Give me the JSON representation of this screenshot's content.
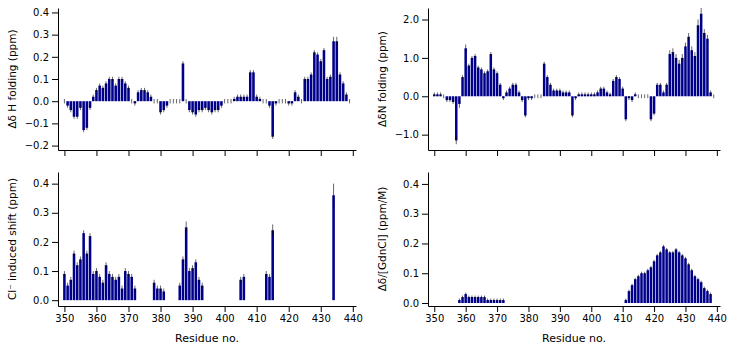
{
  "chart_data": [
    {
      "type": "bar",
      "ylabel": "Δδ H folding (ppm)",
      "color": "#00008B",
      "tick_labels": "y",
      "x": [
        350,
        351,
        352,
        353,
        354,
        355,
        356,
        357,
        358,
        359,
        360,
        361,
        362,
        363,
        364,
        365,
        366,
        367,
        368,
        369,
        370,
        371,
        372,
        373,
        374,
        375,
        376,
        377,
        378,
        379,
        380,
        381,
        382,
        383,
        384,
        385,
        386,
        387,
        388,
        389,
        390,
        391,
        392,
        393,
        394,
        395,
        396,
        397,
        398,
        399,
        400,
        401,
        402,
        403,
        404,
        405,
        406,
        407,
        408,
        409,
        410,
        411,
        412,
        413,
        414,
        415,
        416,
        417,
        418,
        419,
        420,
        421,
        422,
        423,
        424,
        425,
        426,
        427,
        428,
        429,
        430,
        431,
        432,
        433,
        434,
        435,
        436,
        437,
        438,
        439
      ],
      "values": [
        0.0,
        -0.02,
        -0.04,
        -0.07,
        -0.07,
        -0.03,
        -0.13,
        -0.12,
        -0.03,
        0.02,
        0.05,
        0.07,
        0.06,
        0.08,
        0.1,
        0.1,
        0.07,
        0.1,
        0.1,
        0.08,
        0.06,
        0.0,
        -0.01,
        0.04,
        0.05,
        0.05,
        0.04,
        0.02,
        0.0,
        0.0,
        -0.05,
        -0.04,
        -0.02,
        0.0,
        0.0,
        0.0,
        0.0,
        0.17,
        0.0,
        -0.04,
        -0.05,
        -0.06,
        -0.04,
        -0.04,
        -0.03,
        -0.04,
        -0.05,
        -0.04,
        -0.04,
        -0.02,
        0.0,
        0.0,
        0.0,
        0.01,
        0.02,
        0.02,
        0.02,
        0.02,
        0.13,
        0.13,
        0.02,
        0.01,
        0.0,
        0.0,
        -0.02,
        -0.16,
        -0.01,
        0.0,
        0.0,
        0.0,
        -0.01,
        -0.01,
        0.04,
        0.02,
        0.0,
        0.1,
        0.1,
        0.12,
        0.22,
        0.21,
        0.18,
        0.23,
        0.1,
        0.11,
        0.27,
        0.27,
        0.12,
        0.08,
        0.03,
        0.0
      ],
      "errors": [
        0.01,
        0.01,
        0.01,
        0.01,
        0.01,
        0.01,
        0.01,
        0.01,
        0.01,
        0.01,
        0.01,
        0.01,
        0.01,
        0.01,
        0.01,
        0.01,
        0.01,
        0.01,
        0.01,
        0.01,
        0.01,
        0.01,
        0.01,
        0.01,
        0.01,
        0.01,
        0.01,
        0.01,
        0.01,
        0.01,
        0.01,
        0.01,
        0.01,
        0.01,
        0.01,
        0.01,
        0.01,
        0.01,
        0.01,
        0.01,
        0.01,
        0.01,
        0.01,
        0.01,
        0.01,
        0.01,
        0.01,
        0.01,
        0.01,
        0.01,
        0.01,
        0.01,
        0.01,
        0.01,
        0.01,
        0.01,
        0.01,
        0.01,
        0.01,
        0.01,
        0.01,
        0.01,
        0.01,
        0.01,
        0.01,
        0.01,
        0.01,
        0.01,
        0.01,
        0.01,
        0.01,
        0.01,
        0.01,
        0.01,
        0.01,
        0.01,
        0.01,
        0.01,
        0.01,
        0.01,
        0.01,
        0.01,
        0.01,
        0.01,
        0.02,
        0.02,
        0.01,
        0.01,
        0.01,
        0.01
      ],
      "xlim": [
        348,
        441
      ],
      "xticks": [
        350,
        360,
        370,
        380,
        390,
        400,
        410,
        420,
        430,
        440
      ],
      "ylim": [
        -0.22,
        0.42
      ],
      "yticks": [
        {
          "value": -0.2,
          "label": "−0.2"
        },
        {
          "value": -0.1,
          "label": "−0.1"
        },
        {
          "value": 0.0,
          "label": "0.0"
        },
        0.1,
        0.2,
        0.3,
        0.4
      ]
    },
    {
      "type": "bar",
      "ylabel": "ΔδN folding (ppm)",
      "color": "#00008B",
      "tick_labels": "y",
      "x": [
        350,
        351,
        352,
        353,
        354,
        355,
        356,
        357,
        358,
        359,
        360,
        361,
        362,
        363,
        364,
        365,
        366,
        367,
        368,
        369,
        370,
        371,
        372,
        373,
        374,
        375,
        376,
        377,
        378,
        379,
        380,
        381,
        382,
        383,
        384,
        385,
        386,
        387,
        388,
        389,
        390,
        391,
        392,
        393,
        394,
        395,
        396,
        397,
        398,
        399,
        400,
        401,
        402,
        403,
        404,
        405,
        406,
        407,
        408,
        409,
        410,
        411,
        412,
        413,
        414,
        415,
        416,
        417,
        418,
        419,
        420,
        421,
        422,
        423,
        424,
        425,
        426,
        427,
        428,
        429,
        430,
        431,
        432,
        433,
        434,
        435,
        436,
        437,
        438,
        439
      ],
      "values": [
        0.05,
        0.05,
        0.05,
        0.0,
        -0.1,
        -0.1,
        -0.15,
        -1.15,
        -0.2,
        0.5,
        1.25,
        0.8,
        1.0,
        1.05,
        0.75,
        0.7,
        0.6,
        0.65,
        1.1,
        0.7,
        0.6,
        0.3,
        -0.05,
        0.1,
        0.2,
        0.3,
        0.3,
        0.1,
        -0.1,
        -0.5,
        -0.05,
        -0.05,
        0.0,
        0.0,
        0.0,
        0.85,
        0.5,
        0.3,
        0.15,
        0.15,
        0.15,
        0.1,
        0.1,
        0.1,
        -0.5,
        -0.05,
        0.05,
        0.05,
        0.05,
        0.05,
        0.05,
        0.05,
        0.1,
        0.2,
        0.2,
        0.1,
        0.05,
        0.4,
        0.5,
        0.45,
        0.2,
        -0.6,
        -0.05,
        -0.1,
        0.05,
        0.0,
        0.0,
        0.0,
        0.0,
        -0.6,
        -0.45,
        0.3,
        0.3,
        0.1,
        0.3,
        1.1,
        1.15,
        1.0,
        0.85,
        1.0,
        1.3,
        1.55,
        1.2,
        1.05,
        1.85,
        2.15,
        1.65,
        1.5,
        0.1,
        0.0
      ],
      "errors": [
        0.05,
        0.05,
        0.05,
        0.05,
        0.05,
        0.05,
        0.05,
        0.1,
        0.1,
        0.05,
        0.1,
        0.05,
        0.05,
        0.05,
        0.05,
        0.05,
        0.05,
        0.05,
        0.05,
        0.05,
        0.05,
        0.05,
        0.05,
        0.05,
        0.05,
        0.05,
        0.05,
        0.05,
        0.05,
        0.05,
        0.05,
        0.05,
        0.05,
        0.05,
        0.05,
        0.05,
        0.05,
        0.05,
        0.05,
        0.05,
        0.05,
        0.05,
        0.05,
        0.05,
        0.05,
        0.05,
        0.05,
        0.05,
        0.05,
        0.05,
        0.05,
        0.05,
        0.05,
        0.05,
        0.05,
        0.05,
        0.05,
        0.05,
        0.05,
        0.05,
        0.05,
        0.05,
        0.05,
        0.05,
        0.05,
        0.05,
        0.05,
        0.05,
        0.05,
        0.05,
        0.05,
        0.05,
        0.05,
        0.05,
        0.05,
        0.1,
        0.1,
        0.1,
        0.1,
        0.1,
        0.1,
        0.1,
        0.1,
        0.1,
        0.15,
        0.15,
        0.1,
        0.1,
        0.05,
        0.05
      ],
      "xlim": [
        348,
        441
      ],
      "xticks": [
        350,
        360,
        370,
        380,
        390,
        400,
        410,
        420,
        430,
        440
      ],
      "ylim": [
        -1.4,
        2.3
      ],
      "yticks": [
        {
          "value": -1.0,
          "label": "−1.0"
        },
        {
          "value": 0.0,
          "label": "0.0"
        },
        {
          "value": 1.0,
          "label": "1.0"
        },
        {
          "value": 2.0,
          "label": "2.0"
        }
      ]
    },
    {
      "type": "bar",
      "ylabel": "Cl⁻ induced shift (ppm)",
      "xlabel": "Residue no.",
      "color": "#00008B",
      "x": [
        350,
        351,
        352,
        353,
        354,
        355,
        356,
        357,
        358,
        359,
        360,
        361,
        362,
        363,
        364,
        365,
        366,
        367,
        368,
        369,
        370,
        371,
        372,
        373,
        374,
        375,
        376,
        377,
        378,
        379,
        380,
        381,
        382,
        383,
        384,
        385,
        386,
        387,
        388,
        389,
        390,
        391,
        392,
        393,
        394,
        395,
        396,
        397,
        398,
        399,
        400,
        401,
        402,
        403,
        404,
        405,
        406,
        407,
        408,
        409,
        410,
        411,
        412,
        413,
        414,
        415,
        416,
        417,
        418,
        419,
        420,
        421,
        422,
        423,
        424,
        425,
        426,
        427,
        428,
        429,
        430,
        431,
        432,
        433,
        434,
        435,
        436,
        437,
        438,
        439
      ],
      "values": [
        0.09,
        0.05,
        0.07,
        0.16,
        0.12,
        0.14,
        0.23,
        0.16,
        0.22,
        0.09,
        0.1,
        0.08,
        0.06,
        0.12,
        0.09,
        0.08,
        0.07,
        0.08,
        0.04,
        0.1,
        0.09,
        0.08,
        0.04,
        0.0,
        0.0,
        0.0,
        0.0,
        0.0,
        0.06,
        0.04,
        0.04,
        0.03,
        0.0,
        0.0,
        0.0,
        0.0,
        0.05,
        0.14,
        0.25,
        0.1,
        0.11,
        0.13,
        0.07,
        0.05,
        0.0,
        0.0,
        0.0,
        0.0,
        0.0,
        0.0,
        0.0,
        0.0,
        0.0,
        0.0,
        0.0,
        0.07,
        0.08,
        0.0,
        0.0,
        0.0,
        0.0,
        0.0,
        0.0,
        0.09,
        0.08,
        0.24,
        0.0,
        0.0,
        0.0,
        0.0,
        0.0,
        0.0,
        0.0,
        0.0,
        0.0,
        0.0,
        0.0,
        0.0,
        0.0,
        0.0,
        0.0,
        0.0,
        0.0,
        0.0,
        0.36,
        0.0,
        0.0,
        0.0,
        0.0,
        0.0
      ],
      "errors": [
        0.01,
        0.01,
        0.01,
        0.01,
        0.01,
        0.01,
        0.01,
        0.01,
        0.01,
        0.01,
        0.01,
        0.01,
        0.01,
        0.01,
        0.01,
        0.01,
        0.01,
        0.01,
        0.01,
        0.01,
        0.01,
        0.01,
        0.01,
        0.0,
        0.0,
        0.0,
        0.0,
        0.0,
        0.01,
        0.01,
        0.01,
        0.01,
        0.0,
        0.0,
        0.0,
        0.0,
        0.01,
        0.01,
        0.02,
        0.01,
        0.01,
        0.01,
        0.01,
        0.01,
        0.0,
        0.0,
        0.0,
        0.0,
        0.0,
        0.0,
        0.0,
        0.0,
        0.0,
        0.0,
        0.0,
        0.01,
        0.01,
        0.0,
        0.0,
        0.0,
        0.0,
        0.0,
        0.0,
        0.01,
        0.01,
        0.02,
        0.0,
        0.0,
        0.0,
        0.0,
        0.0,
        0.0,
        0.0,
        0.0,
        0.0,
        0.0,
        0.0,
        0.0,
        0.0,
        0.0,
        0.0,
        0.0,
        0.0,
        0.0,
        0.04,
        0.0,
        0.0,
        0.0,
        0.0,
        0.0
      ],
      "xlim": [
        348,
        441
      ],
      "xticks": [
        350,
        360,
        370,
        380,
        390,
        400,
        410,
        420,
        430,
        440
      ],
      "ylim": [
        -0.02,
        0.44
      ],
      "yticks": [
        {
          "value": 0.0,
          "label": "0.0"
        },
        0.1,
        0.2,
        0.3,
        0.4
      ]
    },
    {
      "type": "bar",
      "ylabel": "Δδ/[GdnCl] (ppm/M)",
      "xlabel": "Residue no.",
      "color": "#00008B",
      "x": [
        350,
        351,
        352,
        353,
        354,
        355,
        356,
        357,
        358,
        359,
        360,
        361,
        362,
        363,
        364,
        365,
        366,
        367,
        368,
        369,
        370,
        371,
        372,
        373,
        374,
        375,
        376,
        377,
        378,
        379,
        380,
        381,
        382,
        383,
        384,
        385,
        386,
        387,
        388,
        389,
        390,
        391,
        392,
        393,
        394,
        395,
        396,
        397,
        398,
        399,
        400,
        401,
        402,
        403,
        404,
        405,
        406,
        407,
        408,
        409,
        410,
        411,
        412,
        413,
        414,
        415,
        416,
        417,
        418,
        419,
        420,
        421,
        422,
        423,
        424,
        425,
        426,
        427,
        428,
        429,
        430,
        431,
        432,
        433,
        434,
        435,
        436,
        437,
        438,
        439
      ],
      "values": [
        0.0,
        0.0,
        0.0,
        0.0,
        0.0,
        0.0,
        0.0,
        0.0,
        0.01,
        0.02,
        0.03,
        0.02,
        0.02,
        0.02,
        0.02,
        0.02,
        0.02,
        0.01,
        0.01,
        0.01,
        0.01,
        0.01,
        0.01,
        0.0,
        0.0,
        0.0,
        0.0,
        0.0,
        0.0,
        0.0,
        0.0,
        0.0,
        0.0,
        0.0,
        0.0,
        0.0,
        0.0,
        0.0,
        0.0,
        0.0,
        0.0,
        0.0,
        0.0,
        0.0,
        0.0,
        0.0,
        0.0,
        0.0,
        0.0,
        0.0,
        0.0,
        0.0,
        0.0,
        0.0,
        0.0,
        0.0,
        0.0,
        0.0,
        0.0,
        0.0,
        0.0,
        0.01,
        0.04,
        0.06,
        0.08,
        0.09,
        0.1,
        0.1,
        0.11,
        0.12,
        0.14,
        0.16,
        0.17,
        0.19,
        0.18,
        0.17,
        0.17,
        0.18,
        0.17,
        0.16,
        0.15,
        0.13,
        0.11,
        0.09,
        0.08,
        0.07,
        0.05,
        0.04,
        0.03,
        0.0
      ],
      "errors": [
        0.0,
        0.0,
        0.0,
        0.0,
        0.0,
        0.0,
        0.0,
        0.0,
        0.005,
        0.005,
        0.005,
        0.005,
        0.005,
        0.005,
        0.005,
        0.005,
        0.005,
        0.005,
        0.005,
        0.005,
        0.005,
        0.005,
        0.005,
        0.0,
        0.0,
        0.0,
        0.0,
        0.0,
        0.0,
        0.0,
        0.0,
        0.0,
        0.0,
        0.0,
        0.0,
        0.0,
        0.0,
        0.0,
        0.0,
        0.0,
        0.0,
        0.0,
        0.0,
        0.0,
        0.0,
        0.0,
        0.0,
        0.0,
        0.0,
        0.0,
        0.0,
        0.0,
        0.0,
        0.0,
        0.0,
        0.0,
        0.0,
        0.0,
        0.0,
        0.0,
        0.0,
        0.005,
        0.005,
        0.005,
        0.005,
        0.005,
        0.005,
        0.005,
        0.005,
        0.005,
        0.005,
        0.005,
        0.005,
        0.005,
        0.005,
        0.005,
        0.005,
        0.005,
        0.005,
        0.005,
        0.005,
        0.005,
        0.005,
        0.005,
        0.005,
        0.005,
        0.005,
        0.005,
        0.005,
        0.0
      ],
      "xlim": [
        348,
        441
      ],
      "xticks": [
        350,
        360,
        370,
        380,
        390,
        400,
        410,
        420,
        430,
        440
      ],
      "ylim": [
        -0.01,
        0.44
      ],
      "yticks": [
        {
          "value": 0.0,
          "label": "0.0"
        },
        0.1,
        0.2,
        0.3,
        0.4
      ]
    }
  ]
}
